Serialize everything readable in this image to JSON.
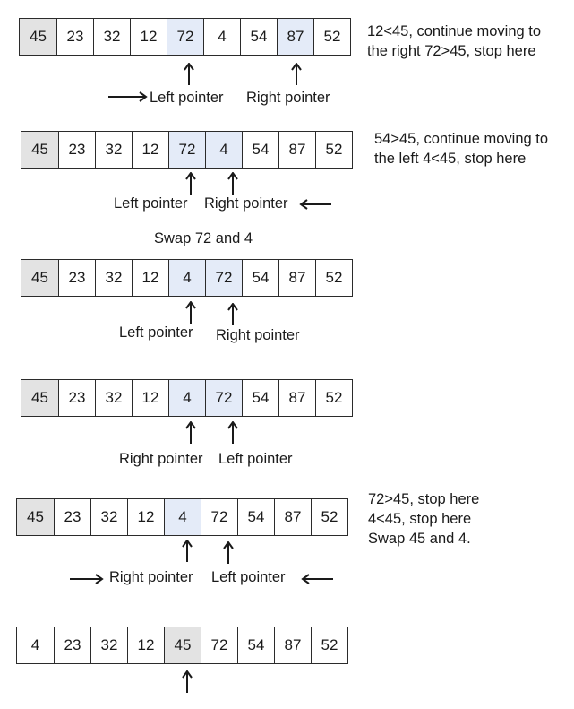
{
  "steps": [
    {
      "values": [
        "45",
        "23",
        "32",
        "12",
        "72",
        "4",
        "54",
        "87",
        "52"
      ],
      "note_lines": [
        "12<45, continue moving to",
        "the right 72>45, stop here"
      ],
      "labels": [
        "Left pointer",
        "Right pointer"
      ]
    },
    {
      "values": [
        "45",
        "23",
        "32",
        "12",
        "72",
        "4",
        "54",
        "87",
        "52"
      ],
      "note_lines": [
        "54>45, continue moving to",
        "the left 4<45, stop here"
      ],
      "labels": [
        "Left pointer",
        "Right pointer"
      ]
    },
    {
      "title": "Swap 72 and 4",
      "values": [
        "45",
        "23",
        "32",
        "12",
        "4",
        "72",
        "54",
        "87",
        "52"
      ],
      "labels": [
        "Left pointer",
        "Right pointer"
      ]
    },
    {
      "values": [
        "45",
        "23",
        "32",
        "12",
        "4",
        "72",
        "54",
        "87",
        "52"
      ],
      "labels": [
        "Right pointer",
        "Left pointer"
      ]
    },
    {
      "values": [
        "45",
        "23",
        "32",
        "12",
        "4",
        "72",
        "54",
        "87",
        "52"
      ],
      "note_lines": [
        "72>45, stop here",
        "4<45, stop here",
        "Swap 45 and 4."
      ],
      "labels": [
        "Right pointer",
        "Left pointer"
      ]
    },
    {
      "values": [
        "4",
        "23",
        "32",
        "12",
        "45",
        "72",
        "54",
        "87",
        "52"
      ]
    }
  ],
  "colors": {
    "pivot": "#e3e3e3",
    "highlight": "#e4ebf8",
    "line": "#2b2b2b"
  }
}
